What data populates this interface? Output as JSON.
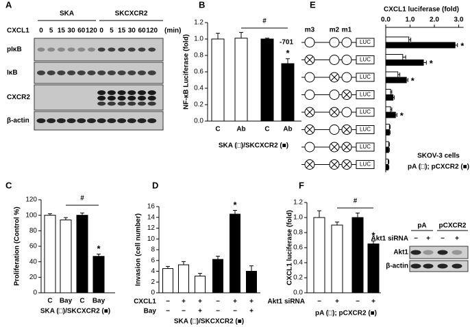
{
  "chart_data": [
    {
      "type": "bar",
      "label": "B",
      "ylabel": "NF-κB Luciferase (fold)",
      "categories": [
        "C",
        "Ab",
        "C",
        "Ab"
      ],
      "values": [
        1.0,
        1.01,
        1.0,
        0.7
      ],
      "errors": [
        0.07,
        0.07,
        0.01,
        0.06
      ],
      "colors": [
        "#ffffff",
        "#ffffff",
        "#000000",
        "#000000"
      ],
      "ylim": [
        0,
        1.2
      ],
      "yticks": [
        {
          "value": 0,
          "label": "0.0"
        },
        {
          "value": 0.2,
          "label": "0.2"
        },
        {
          "value": 0.4,
          "label": "0.4"
        },
        {
          "value": 0.6,
          "label": "0.6"
        },
        {
          "value": 0.8,
          "label": "0.8"
        },
        {
          "value": 1.0,
          "label": "1.0"
        },
        {
          "value": 1.2,
          "label": "1.2"
        }
      ],
      "xlabel": "SKA (□)/SKCXCR2 (■)",
      "star": "*",
      "significant": [
        false,
        false,
        false,
        true
      ],
      "hash": "#",
      "comparison": [
        1,
        3
      ]
    },
    {
      "type": "bar",
      "label": "C",
      "ylabel": "Proliferation (Control %)",
      "categories": [
        "C",
        "Bay",
        "C",
        "Bay"
      ],
      "values": [
        100,
        94,
        100,
        47
      ],
      "errors": [
        2,
        3,
        3,
        3
      ],
      "colors": [
        "#ffffff",
        "#ffffff",
        "#000000",
        "#000000"
      ],
      "ylim": [
        0,
        120
      ],
      "yticks": [
        0,
        20,
        40,
        60,
        80,
        100,
        120
      ],
      "xlabel": "SKA (□)/SKCXCR2 (■)",
      "star": "*",
      "significant": [
        false,
        false,
        false,
        true
      ],
      "hash": "#",
      "comparison": [
        1,
        3
      ]
    },
    {
      "type": "bar",
      "label": "D",
      "ylabel": "Invasion (cell number)",
      "values": [
        4.5,
        5.2,
        3.1,
        6.2,
        14.6,
        4.0
      ],
      "errors": [
        0.4,
        0.6,
        0.5,
        0.6,
        0.7,
        1.0
      ],
      "colors": [
        "#ffffff",
        "#ffffff",
        "#ffffff",
        "#000000",
        "#000000",
        "#000000"
      ],
      "ylim": [
        0,
        16
      ],
      "yticks": [
        0,
        2,
        4,
        6,
        8,
        10,
        12,
        14,
        16
      ],
      "conditions": [
        {
          "name": "CXCL1",
          "signs": [
            "−",
            "+",
            "+",
            "−",
            "+",
            "+"
          ]
        },
        {
          "name": "Bay",
          "signs": [
            "−",
            "−",
            "+",
            "−",
            "−",
            "+"
          ]
        }
      ],
      "xlabel": "SKA (□)/SKCXCR2 (■)",
      "star": "*",
      "significant": [
        false,
        false,
        false,
        false,
        true,
        false
      ]
    },
    {
      "type": "hbar",
      "label": "E",
      "title": "CXCL1 luciferase (fold)",
      "categories": [
        "-701",
        null,
        null,
        null,
        null,
        null,
        null,
        null
      ],
      "elements": [
        "m3",
        "m2",
        "m1"
      ],
      "reporter": "LUC",
      "series": [
        {
          "color": "#ffffff",
          "values": [
            0.95,
            0.7,
            0.5,
            0.2,
            0.2,
            0.15,
            0.12,
            0.1
          ],
          "errors": [
            0.08,
            0.12,
            0.08,
            0.05,
            0.05,
            0.03,
            0.03,
            0.03
          ]
        },
        {
          "color": "#000000",
          "values": [
            2.85,
            1.55,
            0.85,
            0.3,
            0.4,
            0.15,
            0.12,
            0.1
          ],
          "errors": [
            0.1,
            0.12,
            0.06,
            0.05,
            0.06,
            0.03,
            0.03,
            0.03
          ],
          "significant": [
            true,
            true,
            true,
            false,
            true,
            false,
            false,
            false
          ]
        }
      ],
      "xlim": [
        0,
        3.2
      ],
      "xticks": [
        {
          "value": 0,
          "label": "0.0"
        },
        {
          "value": 1,
          "label": "1.0"
        },
        {
          "value": 2,
          "label": "2.0"
        },
        {
          "value": 3,
          "label": "3.0"
        }
      ],
      "star": "*",
      "note": "SKOV-3 cells",
      "legend": "pA (□); pCXCR2 (■)"
    },
    {
      "type": "bar",
      "label": "F",
      "ylabel": "CXCL1 luciferase (fold)",
      "values": [
        1.0,
        0.9,
        1.0,
        0.65
      ],
      "errors": [
        0.09,
        0.04,
        0.06,
        0.04
      ],
      "colors": [
        "#ffffff",
        "#ffffff",
        "#000000",
        "#000000"
      ],
      "ylim": [
        0,
        1.2
      ],
      "yticks": [
        {
          "value": 0,
          "label": "0.0"
        },
        {
          "value": 0.2,
          "label": "0.2"
        },
        {
          "value": 0.4,
          "label": "0.4"
        },
        {
          "value": 0.6,
          "label": "0.6"
        },
        {
          "value": 0.8,
          "label": "0.8"
        },
        {
          "value": 1.0,
          "label": "1.0"
        },
        {
          "value": 1.2,
          "label": "1.2"
        }
      ],
      "conditions": [
        {
          "name": "Akt1 siRNA",
          "signs": [
            "−",
            "+",
            "−",
            "+"
          ]
        }
      ],
      "xlabel": "pA (□); pCXCR2 (■)",
      "star": "*",
      "significant": [
        false,
        false,
        false,
        true
      ],
      "hash": "#",
      "comparison": [
        1,
        3
      ]
    }
  ],
  "blots": {
    "A": {
      "label": "A",
      "groups": [
        "SKA",
        "SKCXCR2"
      ],
      "treatment": "CXCL1",
      "times": [
        "0",
        "5",
        "15",
        "30",
        "60",
        "120",
        "0",
        "5",
        "15",
        "30",
        "60",
        "120"
      ],
      "unit": "(min)",
      "rows": [
        "pIκB",
        "IκB",
        "CXCR2",
        "β-actin"
      ]
    },
    "F": {
      "groups": [
        "pA",
        "pCXCR2"
      ],
      "treatment": "Akt1 siRNA",
      "signs": [
        "−",
        "+",
        "−",
        "+"
      ],
      "rows": [
        "Akt1",
        "β-actin"
      ]
    }
  }
}
